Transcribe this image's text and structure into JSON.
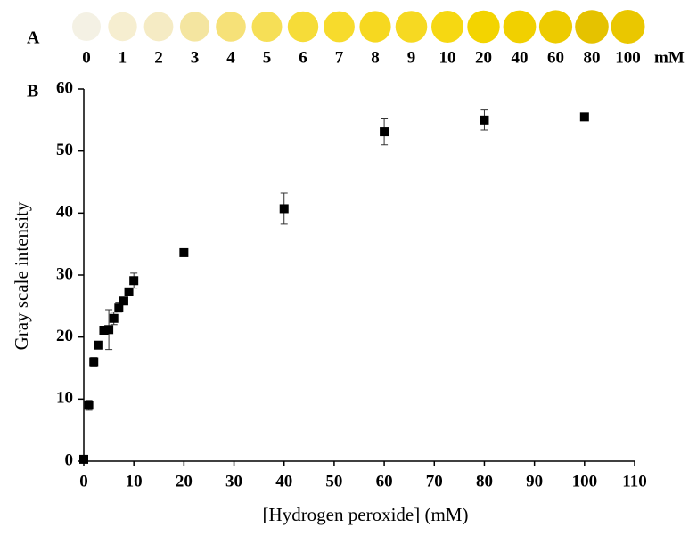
{
  "panel_a": {
    "label": "A",
    "unit": "mM",
    "labels": [
      "0",
      "1",
      "2",
      "3",
      "4",
      "5",
      "6",
      "7",
      "8",
      "9",
      "10",
      "20",
      "40",
      "60",
      "80",
      "100"
    ],
    "colors": [
      "#f4f1e4",
      "#f6eed0",
      "#f5ebc4",
      "#f4e5a0",
      "#f6e178",
      "#f6df56",
      "#f6dc38",
      "#f7db2c",
      "#f6d820",
      "#f6d922",
      "#f6d812",
      "#f3d400",
      "#f1d000",
      "#edcb00",
      "#e5c200",
      "#eac700"
    ]
  },
  "chart_data": {
    "type": "scatter",
    "panel_label": "B",
    "xlabel": "[Hydrogen peroxide] (mM)",
    "ylabel": "Gray scale intensity",
    "x": [
      0,
      1,
      2,
      3,
      4,
      5,
      6,
      7,
      8,
      9,
      10,
      20,
      40,
      60,
      80,
      100
    ],
    "values": [
      0.3,
      9.0,
      16.0,
      18.7,
      21.1,
      21.2,
      23.0,
      24.8,
      25.8,
      27.3,
      29.1,
      33.6,
      40.7,
      53.1,
      55.0,
      55.5
    ],
    "errors": [
      0,
      0.8,
      0.7,
      0.5,
      0.5,
      3.2,
      1.0,
      0.8,
      0.6,
      0.6,
      1.2,
      0.5,
      2.5,
      2.1,
      1.6,
      0.3
    ],
    "color": "#000000",
    "xlim": [
      0,
      110
    ],
    "xticks": [
      0,
      10,
      20,
      30,
      40,
      50,
      60,
      70,
      80,
      90,
      100,
      110
    ],
    "ylim": [
      0,
      60
    ],
    "yticks": [
      0,
      10,
      20,
      30,
      40,
      50,
      60
    ],
    "grid": false
  }
}
